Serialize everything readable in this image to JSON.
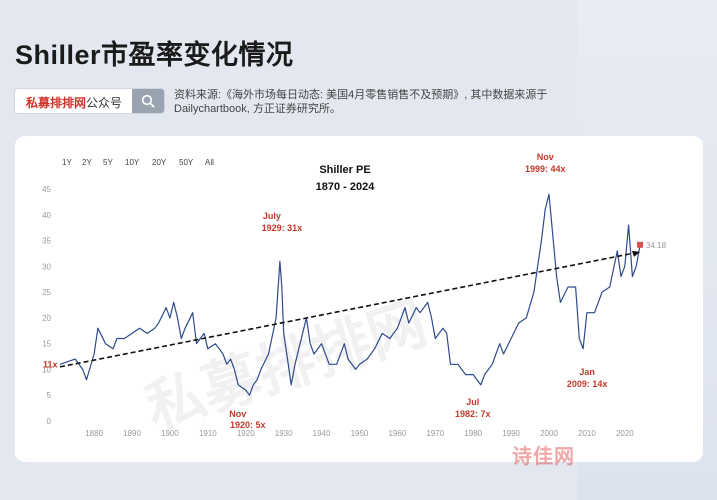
{
  "page": {
    "title": "Shiller市盈率变化情况"
  },
  "search": {
    "brand": "私募排排网",
    "suffix": "公众号"
  },
  "source": "资料来源:《海外市场每日动态: 美国4月零售销售不及预期》, 其中数据来源于Dailychartbook, 方正证券研究所。",
  "range_buttons": [
    "1Y",
    "2Y",
    "5Y",
    "10Y",
    "20Y",
    "50Y",
    "All"
  ],
  "watermarks": {
    "chart": "私募排排网",
    "footer": "诗佳网"
  },
  "colors": {
    "line": "#2e4a8c",
    "annotation": "#c0392b",
    "trend": "#111111",
    "marker": "#d9534f"
  },
  "chart_data": {
    "type": "line",
    "title": "Shiller PE",
    "subtitle": "1870 - 2024",
    "xlim": [
      1871,
      2024
    ],
    "ylim": [
      0,
      45
    ],
    "x_ticks": [
      1880,
      1890,
      1900,
      1910,
      1920,
      1930,
      1940,
      1950,
      1960,
      1970,
      1980,
      1990,
      2000,
      2010,
      2020
    ],
    "y_ticks": [
      0,
      5,
      10,
      15,
      20,
      25,
      30,
      35,
      40,
      45
    ],
    "grid": false,
    "series": [
      {
        "x": [
          1871,
          1873,
          1875,
          1877,
          1878,
          1880,
          1881,
          1883,
          1885,
          1886,
          1888,
          1890,
          1892,
          1894,
          1896,
          1897,
          1899,
          1900,
          1901,
          1902,
          1903,
          1904,
          1906,
          1907,
          1909,
          1910,
          1912,
          1914,
          1915,
          1916,
          1917,
          1918,
          1920,
          1921,
          1922,
          1923,
          1924,
          1926,
          1928,
          1929,
          1929.5,
          1930,
          1931,
          1932,
          1933,
          1935,
          1936,
          1937,
          1938,
          1940,
          1942,
          1944,
          1946,
          1947,
          1949,
          1950,
          1952,
          1954,
          1956,
          1958,
          1960,
          1962,
          1963,
          1965,
          1966,
          1968,
          1969,
          1970,
          1972,
          1973,
          1974,
          1976,
          1978,
          1980,
          1981,
          1982,
          1983,
          1985,
          1987,
          1988,
          1990,
          1992,
          1994,
          1996,
          1998,
          1999,
          2000,
          2001,
          2002,
          2003,
          2005,
          2007,
          2008,
          2009,
          2010,
          2012,
          2014,
          2016,
          2018,
          2019,
          2020,
          2021,
          2022,
          2023,
          2024
        ],
        "y": [
          11,
          11.5,
          12,
          10,
          8,
          13,
          18,
          15,
          14,
          16,
          16,
          17,
          18,
          17,
          18,
          19,
          22,
          20,
          23,
          20,
          16,
          18,
          21,
          15,
          17,
          14,
          15,
          13,
          11,
          12,
          10,
          7,
          6,
          5,
          7,
          8,
          10,
          13,
          20,
          31,
          26,
          17,
          12,
          7,
          11,
          17,
          20,
          15,
          13,
          15,
          11,
          11,
          15,
          12,
          10,
          11,
          12,
          14,
          17,
          16,
          18,
          22,
          19,
          22,
          21,
          23,
          20,
          16,
          18,
          17,
          11,
          11,
          9,
          9,
          8,
          7,
          9,
          11,
          15,
          13,
          16,
          19,
          20,
          25,
          35,
          41,
          44,
          36,
          28,
          23,
          26,
          26,
          16,
          14,
          21,
          21,
          25,
          26,
          33,
          28,
          30,
          38,
          28,
          30,
          34
        ]
      }
    ],
    "annotations": [
      {
        "label": "11x",
        "x": 1871,
        "y": 11
      },
      {
        "label": "Nov 1920: 5x",
        "x": 1920,
        "y": 5
      },
      {
        "label": "July 1929: 31x",
        "x": 1929,
        "y": 31
      },
      {
        "label": "Jul 1982: 7x",
        "x": 1982,
        "y": 7
      },
      {
        "label": "Nov 1999: 44x",
        "x": 1999,
        "y": 44
      },
      {
        "label": "Jan 2009: 14x",
        "x": 2009,
        "y": 14
      },
      {
        "label": "34.18",
        "x": 2024,
        "y": 34.18
      }
    ],
    "trendline": {
      "from": [
        1871,
        10.5
      ],
      "to": [
        2024,
        32.8
      ]
    }
  }
}
